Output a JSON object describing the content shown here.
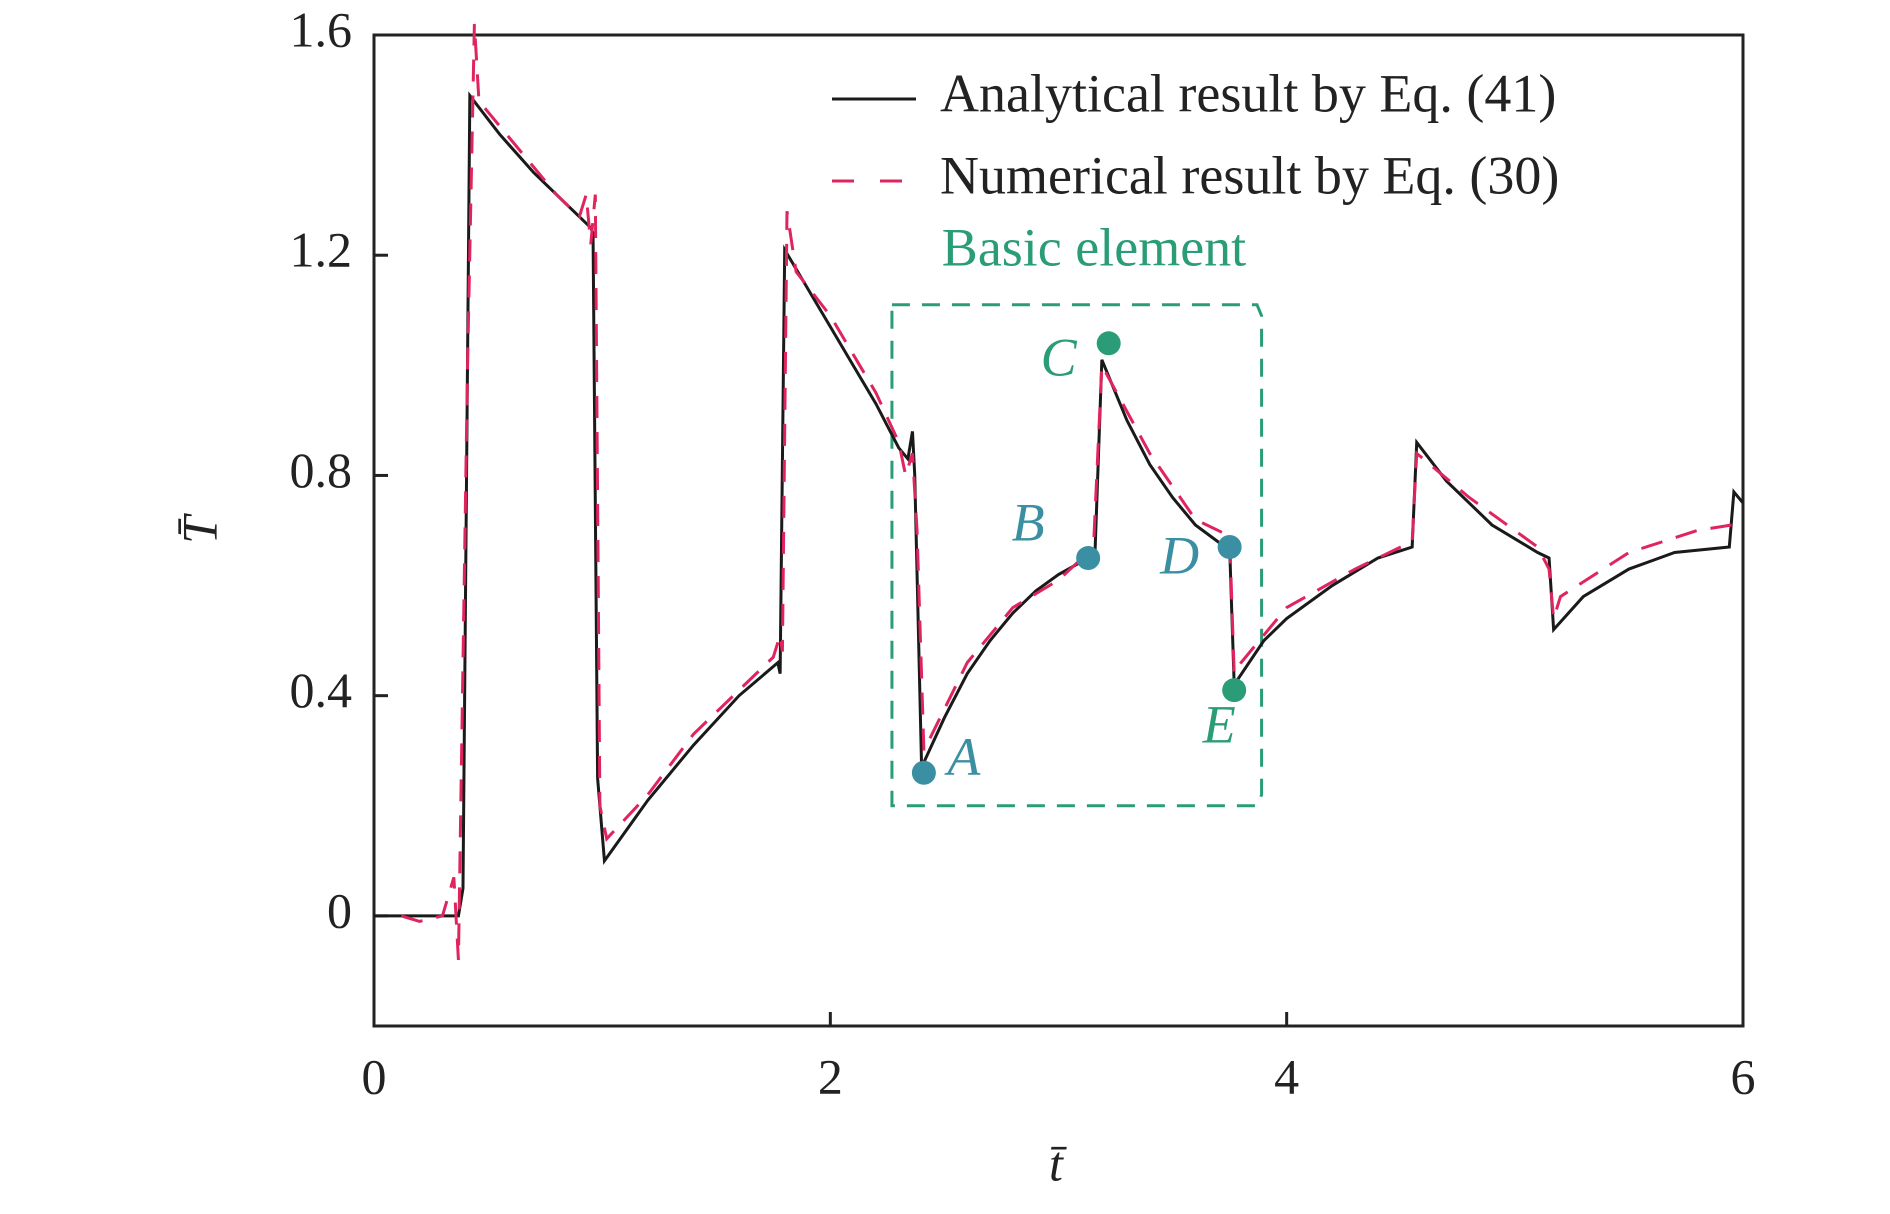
{
  "chart_data": {
    "type": "line",
    "xlabel": "t̄",
    "ylabel": "T̄",
    "xlim": [
      0,
      6
    ],
    "ylim": [
      -0.2,
      1.6
    ],
    "xticks": [
      0,
      2,
      4,
      6
    ],
    "yticks": [
      0,
      0.4,
      0.8,
      1.2,
      1.6
    ],
    "legend": "upper right",
    "annotation": "Basic element",
    "series": [
      {
        "name": "Analytical result by Eq. (41)",
        "color": "#1a1a1a",
        "dash": "solid",
        "x": [
          0,
          0.37,
          0.39,
          0.42,
          0.55,
          0.7,
          0.85,
          0.95,
          0.96,
          0.98,
          1.01,
          1.2,
          1.4,
          1.6,
          1.77,
          1.78,
          1.8,
          1.9,
          2.0,
          2.1,
          2.2,
          2.3,
          2.34,
          2.36,
          2.37,
          2.4,
          2.5,
          2.6,
          2.7,
          2.8,
          2.9,
          3.0,
          3.13,
          3.16,
          3.19,
          3.3,
          3.4,
          3.5,
          3.6,
          3.73,
          3.75,
          3.77,
          3.9,
          4.0,
          4.2,
          4.4,
          4.55,
          4.57,
          4.7,
          4.9,
          5.1,
          5.15,
          5.17,
          5.3,
          5.5,
          5.7,
          5.94,
          5.96,
          6.0
        ],
        "values": [
          0,
          0,
          0.05,
          1.49,
          1.42,
          1.35,
          1.29,
          1.25,
          1.24,
          0.25,
          0.1,
          0.21,
          0.31,
          0.4,
          0.46,
          0.44,
          1.21,
          1.14,
          1.07,
          1.0,
          0.93,
          0.85,
          0.83,
          0.88,
          0.8,
          0.27,
          0.36,
          0.44,
          0.5,
          0.55,
          0.59,
          0.62,
          0.65,
          0.66,
          1.01,
          0.9,
          0.82,
          0.76,
          0.71,
          0.67,
          0.67,
          0.42,
          0.5,
          0.54,
          0.6,
          0.65,
          0.67,
          0.86,
          0.79,
          0.71,
          0.66,
          0.65,
          0.52,
          0.58,
          0.63,
          0.66,
          0.67,
          0.77,
          0.75
        ]
      },
      {
        "name": "Numerical result by Eq. (30)",
        "color": "#e0245e",
        "dash": "dashed",
        "x": [
          0.12,
          0.2,
          0.3,
          0.35,
          0.37,
          0.41,
          0.44,
          0.46,
          0.6,
          0.8,
          0.9,
          0.93,
          0.95,
          0.97,
          0.99,
          1.02,
          1.2,
          1.4,
          1.6,
          1.75,
          1.78,
          1.79,
          1.81,
          1.85,
          2.0,
          2.2,
          2.3,
          2.33,
          2.36,
          2.38,
          2.41,
          2.6,
          2.8,
          3.0,
          3.13,
          3.15,
          3.19,
          3.4,
          3.6,
          3.75,
          3.77,
          3.8,
          4.0,
          4.3,
          4.55,
          4.57,
          4.8,
          5.1,
          5.15,
          5.17,
          5.2,
          5.5,
          5.8,
          5.95
        ],
        "values": [
          0,
          -0.01,
          0,
          0.07,
          -0.08,
          1.0,
          1.62,
          1.48,
          1.41,
          1.31,
          1.27,
          1.31,
          1.22,
          1.31,
          0.2,
          0.14,
          0.22,
          0.33,
          0.41,
          0.47,
          0.51,
          0.48,
          1.28,
          1.17,
          1.09,
          0.95,
          0.86,
          0.8,
          0.84,
          0.7,
          0.3,
          0.46,
          0.56,
          0.61,
          0.66,
          0.64,
          1.0,
          0.84,
          0.72,
          0.69,
          0.44,
          0.46,
          0.56,
          0.63,
          0.68,
          0.84,
          0.76,
          0.67,
          0.63,
          0.54,
          0.58,
          0.66,
          0.7,
          0.71
        ]
      }
    ],
    "points": [
      {
        "label": "A",
        "x": 2.41,
        "y": 0.26,
        "color": "#3a8fa3"
      },
      {
        "label": "B",
        "x": 3.13,
        "y": 0.65,
        "color": "#3a8fa3"
      },
      {
        "label": "C",
        "x": 3.22,
        "y": 1.04,
        "color": "#2a9d78"
      },
      {
        "label": "D",
        "x": 3.75,
        "y": 0.67,
        "color": "#3a8fa3"
      },
      {
        "label": "E",
        "x": 3.77,
        "y": 0.41,
        "color": "#2a9d78"
      }
    ]
  }
}
